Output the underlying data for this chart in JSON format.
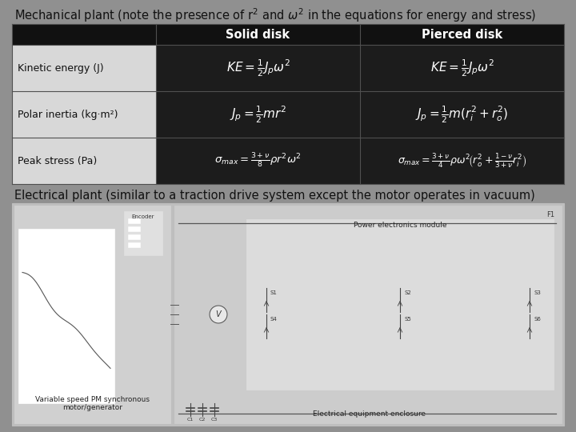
{
  "title": "Mechanical plant (note the presence of r$^2$ and $\\omega^2$ in the equations for energy and stress)",
  "subtitle": "Electrical plant (similar to a traction drive system except the motor operates in vacuum)",
  "col_headers": [
    "Solid disk",
    "Pierced disk"
  ],
  "row_labels": [
    "Kinetic energy (J)",
    "Polar inertia (kg·m²)",
    "Peak stress (Pa)"
  ],
  "formulas_solid": [
    "KE = \\frac{1}{2}J_p\\omega^2",
    "J_p = \\frac{1}{2}mr^2",
    "\\sigma_{max} = \\frac{3+\\nu}{8}\\rho r^2\\omega^2"
  ],
  "formulas_pierced": [
    "KE = \\frac{1}{2}J_p\\omega^2",
    "J_p = \\frac{1}{2}m(r_i^2 + r_o^2)",
    "\\sigma_{max} = \\frac{3+\\nu}{4}\\rho\\omega^2\\!\\left(r_o^2 + \\frac{1-\\nu}{3+\\nu}r_i^2\\right)"
  ],
  "bg_color": "#909090",
  "table_header_color": "#111111",
  "table_dark_color": "#1c1c1c",
  "table_label_color": "#d8d8d8",
  "header_text_color": "#ffffff",
  "formula_text_color": "#ffffff",
  "label_text_color": "#111111",
  "title_color": "#111111",
  "subtitle_color": "#111111",
  "diagram_outer_color": "#bebebe",
  "diagram_left_color": "#d0d0d0",
  "diagram_right_color": "#cccccc",
  "diagram_pe_color": "#dcdcdc"
}
